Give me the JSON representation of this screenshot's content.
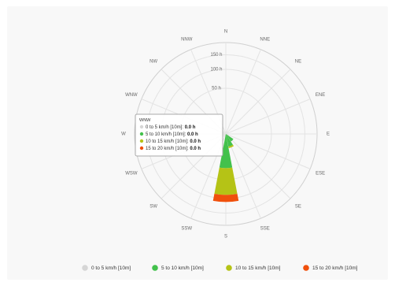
{
  "chart_data": {
    "type": "windrose",
    "directions": [
      "N",
      "NNE",
      "NE",
      "ENE",
      "E",
      "ESE",
      "SE",
      "SSE",
      "S",
      "SSW",
      "SW",
      "WSW",
      "W",
      "WNW",
      "NW",
      "NNW"
    ],
    "radial_ticks": [
      50,
      100,
      150
    ],
    "radial_tick_labels": [
      "50 h",
      "100 h",
      "150 h"
    ],
    "radial_max": 200,
    "stacking": "normal",
    "series": [
      {
        "name": "0 to 5 km/h [10m]",
        "color": "#d6d6d6",
        "values": [
          0,
          0,
          0,
          0,
          0,
          0,
          0,
          0,
          0,
          0,
          0,
          0,
          0,
          0,
          0,
          0
        ]
      },
      {
        "name": "5 to 10 km/h [10m]",
        "color": "#43c14c",
        "values": [
          0,
          0,
          0,
          0,
          0,
          0,
          2,
          4,
          28,
          0,
          0,
          0,
          0,
          0,
          0,
          0
        ]
      },
      {
        "name": "10 to 15 km/h [10m]",
        "color": "#b5c316",
        "values": [
          0,
          0,
          0,
          0,
          0,
          0,
          0,
          1,
          61,
          0,
          0,
          0,
          0,
          0,
          0,
          0
        ]
      },
      {
        "name": "15 to 20 km/h [10m]",
        "color": "#f0500c",
        "values": [
          0,
          0,
          0,
          0,
          0,
          0,
          0,
          0,
          22,
          0,
          0,
          0,
          0,
          0,
          0,
          0
        ]
      }
    ],
    "tooltip": {
      "title": "WNW",
      "rows": [
        {
          "label": "0 to 5 km/h [10m]:",
          "value": "0.0 h",
          "color": "#d6d6d6"
        },
        {
          "label": "5 to 10 km/h [10m]:",
          "value": "0.0 h",
          "color": "#43c14c"
        },
        {
          "label": "10 to 15 km/h [10m]:",
          "value": "0.0 h",
          "color": "#b5c316"
        },
        {
          "label": "15 to 20 km/h [10m]:",
          "value": "0.0 h",
          "color": "#f0500c"
        }
      ]
    },
    "legend": {
      "position": "bottom",
      "items": [
        {
          "label": "0 to 5 km/h [10m]",
          "color": "#d6d6d6"
        },
        {
          "label": "5 to 10 km/h [10m]",
          "color": "#43c14c"
        },
        {
          "label": "10 to 15 km/h [10m]",
          "color": "#b5c316"
        },
        {
          "label": "15 to 20 km/h [10m]",
          "color": "#f0500c"
        }
      ]
    },
    "grid": true
  }
}
